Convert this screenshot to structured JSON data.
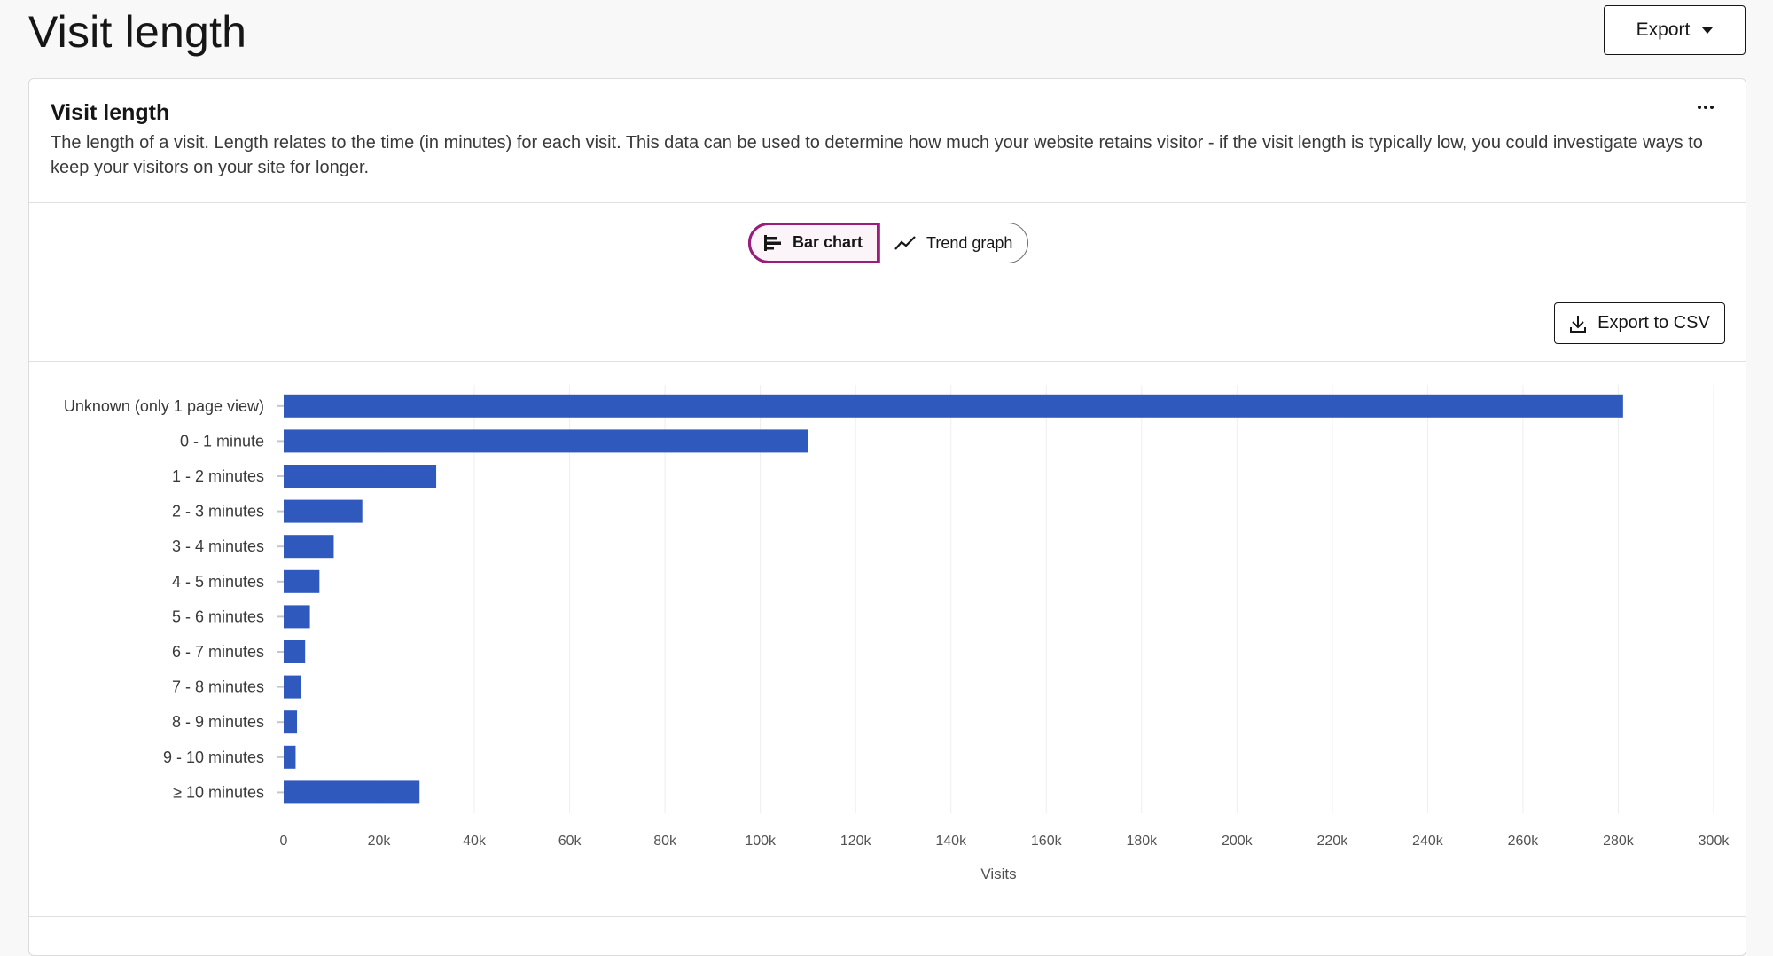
{
  "page": {
    "title": "Visit length",
    "export_label": "Export"
  },
  "card": {
    "title": "Visit length",
    "description": "The length of a visit. Length relates to the time (in minutes) for each visit. This data can be used to determine how much your website retains visitor - if the visit length is typically low, you could investigate ways to keep your visitors on your site for longer.",
    "more_icon": "overflow-menu-icon"
  },
  "view_toggle": {
    "options": [
      {
        "label": "Bar chart",
        "icon": "bar-chart-icon",
        "selected": true
      },
      {
        "label": "Trend graph",
        "icon": "trend-graph-icon",
        "selected": false
      }
    ]
  },
  "toolbar": {
    "export_csv_label": "Export to CSV",
    "export_csv_icon": "download-icon"
  },
  "colors": {
    "bar": "#2f59bd",
    "accent": "#9b1c7d"
  },
  "chart_data": {
    "type": "bar",
    "orientation": "horizontal",
    "categories": [
      "Unknown (only 1 page view)",
      "0 - 1 minute",
      "1 - 2 minutes",
      "2 - 3 minutes",
      "3 - 4 minutes",
      "4 - 5 minutes",
      "5 - 6 minutes",
      "6 - 7 minutes",
      "7 - 8 minutes",
      "8 - 9 minutes",
      "9 - 10 minutes",
      "≥ 10 minutes"
    ],
    "values": [
      281000,
      110000,
      32000,
      16500,
      10500,
      7500,
      5500,
      4500,
      3700,
      2800,
      2500,
      28500
    ],
    "xlabel": "Visits",
    "ylabel": "",
    "xlim": [
      0,
      300000
    ],
    "x_ticks": [
      "0",
      "20k",
      "40k",
      "60k",
      "80k",
      "100k",
      "120k",
      "140k",
      "160k",
      "180k",
      "200k",
      "220k",
      "240k",
      "260k",
      "280k",
      "300k"
    ],
    "grid": true
  }
}
